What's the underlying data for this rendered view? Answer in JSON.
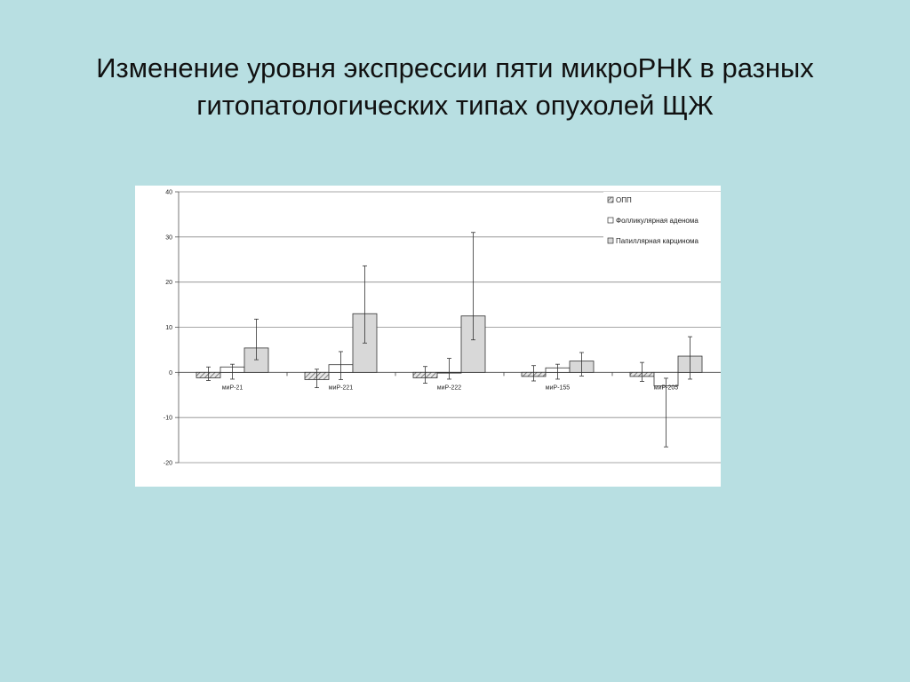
{
  "slide": {
    "title_line1": "Изменение уровня экспрессии пяти микроРНК в разных",
    "title_line2": "гитопатологических типах опухолей ЩЖ"
  },
  "chart_data": {
    "type": "bar",
    "title": "",
    "xlabel": "",
    "ylabel": "",
    "ylim": [
      -20,
      40
    ],
    "yticks": [
      40,
      30,
      20,
      10,
      0,
      -10,
      -20
    ],
    "ytick_labels": [
      "40",
      "30",
      "20",
      "10",
      "0",
      "-10",
      "-20"
    ],
    "grid": true,
    "legend_position": "top-right",
    "categories": [
      "миР-21",
      "миР-221",
      "миР-222",
      "миР-155",
      "миР-205"
    ],
    "series": [
      {
        "name": "ОПП",
        "fill": "hatch",
        "color": "#9a9a9a",
        "values": [
          -1.2,
          -1.6,
          -1.2,
          -0.9,
          -0.9
        ],
        "err_low": [
          -1.8,
          -3.4,
          -2.4,
          -1.9,
          -2.0
        ],
        "err_high": [
          1.2,
          0.7,
          1.3,
          1.5,
          2.2
        ]
      },
      {
        "name": "Фолликулярная аденома",
        "fill": "white",
        "color": "#ffffff",
        "values": [
          1.2,
          1.7,
          0.0,
          1.0,
          -3.0
        ],
        "err_low": [
          -1.5,
          -1.6,
          -1.5,
          -1.5,
          -16.5
        ],
        "err_high": [
          1.8,
          4.6,
          3.1,
          1.8,
          -1.3
        ]
      },
      {
        "name": "Папиллярная карцинома",
        "fill": "grey",
        "color": "#d8d8d8",
        "values": [
          5.4,
          13.0,
          12.5,
          2.5,
          3.6
        ],
        "err_low": [
          2.8,
          6.5,
          7.2,
          -0.8,
          -1.5
        ],
        "err_high": [
          11.8,
          23.6,
          31.0,
          4.4,
          7.9
        ]
      }
    ]
  }
}
